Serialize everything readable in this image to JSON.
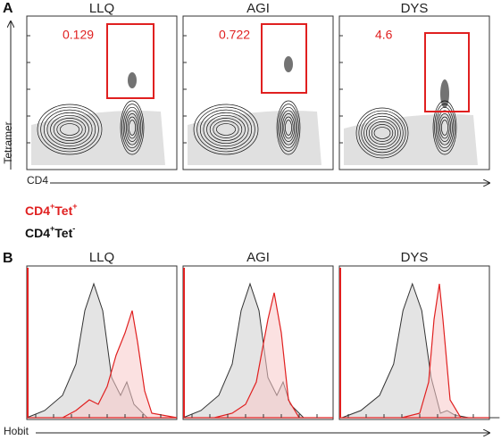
{
  "panel_a": {
    "label": "A",
    "y_axis_label": "Tetramer",
    "x_axis_label": "CD4",
    "plots": [
      {
        "title": "LLQ",
        "gate_value": 0.129
      },
      {
        "title": "AGI",
        "gate_value": 0.722
      },
      {
        "title": "DYS",
        "gate_value": 4.6
      }
    ]
  },
  "legend": [
    {
      "base": "CD4",
      "sup": "+",
      "base2": "Tet",
      "sup2": "+"
    },
    {
      "base": "CD4",
      "sup": "+",
      "base2": "Tet",
      "sup2": "-"
    }
  ],
  "panel_b": {
    "label": "B",
    "x_axis_label": "Hobit",
    "plots": [
      {
        "title": "LLQ"
      },
      {
        "title": "AGI"
      },
      {
        "title": "DYS"
      }
    ]
  }
}
